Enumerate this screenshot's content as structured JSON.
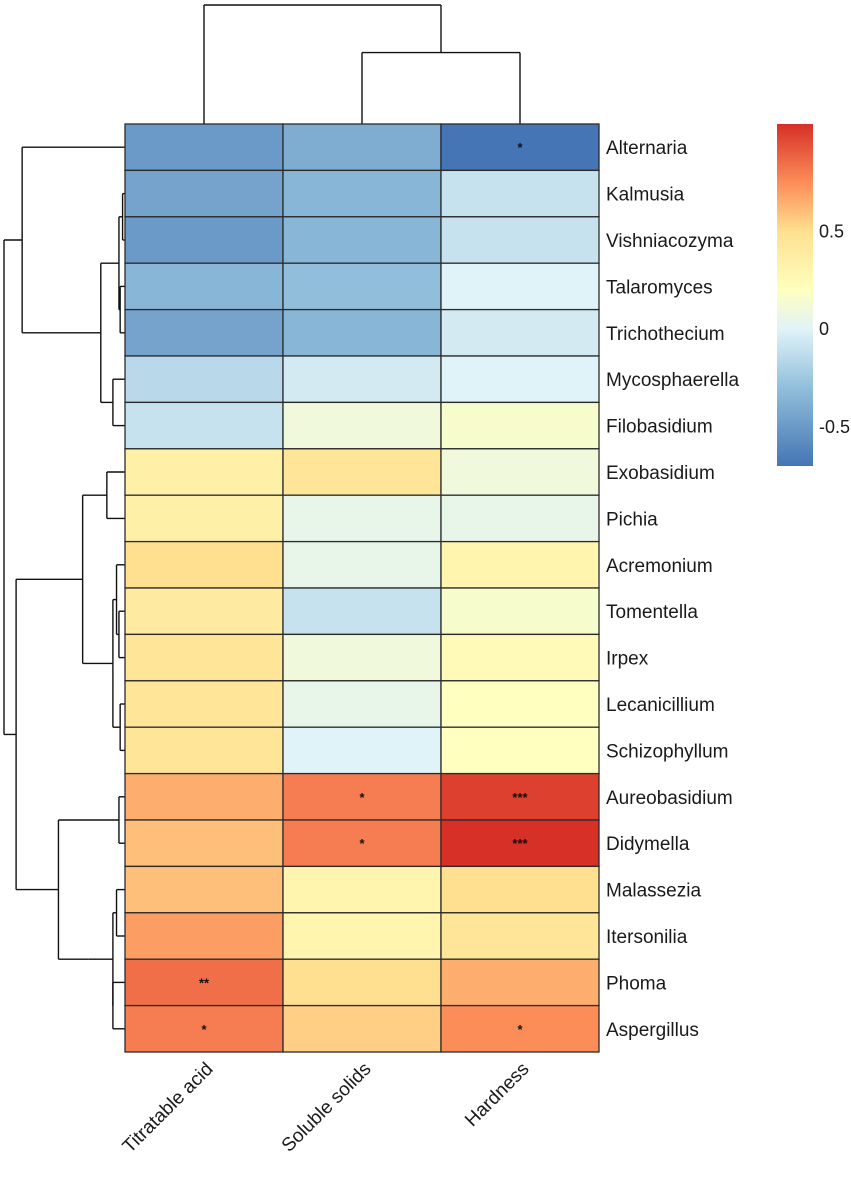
{
  "chart_data": {
    "type": "heatmap",
    "columns": [
      "Titratable acid",
      "Soluble solids",
      "Hardness"
    ],
    "rows": [
      "Alternaria",
      "Kalmusia",
      "Vishniacozyma",
      "Talaromyces",
      "Trichothecium",
      "Mycosphaerella",
      "Filobasidium",
      "Exobasidium",
      "Pichia",
      "Acremonium",
      "Tomentella",
      "Irpex",
      "Lecanicillium",
      "Schizophyllum",
      "Aureobasidium",
      "Didymella",
      "Malassezia",
      "Itersonilia",
      "Phoma",
      "Aspergillus"
    ],
    "values": [
      [
        -0.5,
        -0.4,
        -0.7
      ],
      [
        -0.45,
        -0.35,
        -0.1
      ],
      [
        -0.5,
        -0.35,
        -0.1
      ],
      [
        -0.35,
        -0.3,
        0.0
      ],
      [
        -0.45,
        -0.35,
        -0.05
      ],
      [
        -0.15,
        -0.05,
        0.0
      ],
      [
        -0.1,
        0.1,
        0.15
      ],
      [
        0.35,
        0.45,
        0.1
      ],
      [
        0.35,
        0.05,
        0.05
      ],
      [
        0.5,
        0.05,
        0.3
      ],
      [
        0.4,
        -0.1,
        0.15
      ],
      [
        0.45,
        0.1,
        0.25
      ],
      [
        0.45,
        0.05,
        0.2
      ],
      [
        0.45,
        0.0,
        0.2
      ],
      [
        0.65,
        0.8,
        1.0
      ],
      [
        0.6,
        0.8,
        1.05
      ],
      [
        0.6,
        0.3,
        0.5
      ],
      [
        0.7,
        0.3,
        0.45
      ],
      [
        0.85,
        0.5,
        0.65
      ],
      [
        0.8,
        0.55,
        0.75
      ]
    ],
    "significance": [
      [
        "",
        "",
        "*"
      ],
      [
        "",
        "",
        ""
      ],
      [
        "",
        "",
        ""
      ],
      [
        "",
        "",
        ""
      ],
      [
        "",
        "",
        ""
      ],
      [
        "",
        "",
        ""
      ],
      [
        "",
        "",
        ""
      ],
      [
        "",
        "",
        ""
      ],
      [
        "",
        "",
        ""
      ],
      [
        "",
        "",
        ""
      ],
      [
        "",
        "",
        ""
      ],
      [
        "",
        "",
        ""
      ],
      [
        "",
        "",
        ""
      ],
      [
        "",
        "",
        ""
      ],
      [
        "",
        "*",
        "***"
      ],
      [
        "",
        "*",
        "***"
      ],
      [
        "",
        "",
        ""
      ],
      [
        "",
        "",
        ""
      ],
      [
        "**",
        "",
        ""
      ],
      [
        "*",
        "",
        "*"
      ]
    ],
    "color_scale": {
      "min": -0.7,
      "max": 1.05,
      "stops": [
        {
          "value": -0.7,
          "color": "#4575b4"
        },
        {
          "value": -0.3,
          "color": "#91bfdb"
        },
        {
          "value": 0.0,
          "color": "#e0f3f8"
        },
        {
          "value": 0.2,
          "color": "#ffffbf"
        },
        {
          "value": 0.5,
          "color": "#fee090"
        },
        {
          "value": 0.75,
          "color": "#fc8d59"
        },
        {
          "value": 1.05,
          "color": "#d73027"
        }
      ],
      "ticks": [
        {
          "value": 0.5,
          "label": "0.5"
        },
        {
          "value": 0.0,
          "label": "0"
        },
        {
          "value": -0.5,
          "label": "-0.5"
        }
      ]
    },
    "row_dendrogram": {
      "height": 1.0,
      "children": [
        {
          "height": 0.85,
          "children": [
            {
              "leaf": 0
            },
            {
              "height": 0.2,
              "children": [
                {
                  "height": 0.05,
                  "children": [
                    {
                      "height": 0.02,
                      "children": [
                        {
                          "leaf": 1
                        },
                        {
                          "leaf": 2
                        }
                      ]
                    },
                    {
                      "height": 0.04,
                      "children": [
                        {
                          "leaf": 3
                        },
                        {
                          "leaf": 4
                        }
                      ]
                    }
                  ]
                },
                {
                  "height": 0.1,
                  "children": [
                    {
                      "leaf": 5
                    },
                    {
                      "leaf": 6
                    }
                  ]
                }
              ]
            }
          ]
        },
        {
          "height": 0.9,
          "children": [
            {
              "height": 0.5,
              "children": [
                {
                  "height": 0.35,
                  "children": [
                    {
                      "height": 0.15,
                      "children": [
                        {
                          "leaf": 7
                        },
                        {
                          "leaf": 8
                        }
                      ]
                    },
                    {
                      "height": 0.1,
                      "children": [
                        {
                          "height": 0.07,
                          "children": [
                            {
                              "leaf": 9
                            },
                            {
                              "height": 0.05,
                              "children": [
                                {
                                  "leaf": 10
                                },
                                {
                                  "leaf": 11
                                }
                              ]
                            }
                          ]
                        },
                        {
                          "height": 0.04,
                          "children": [
                            {
                              "leaf": 12
                            },
                            {
                              "leaf": 13
                            }
                          ]
                        }
                      ]
                    }
                  ]
                }
              ]
            },
            {
              "height": 0.55,
              "children": [
                {
                  "height": 0.05,
                  "children": [
                    {
                      "leaf": 14
                    },
                    {
                      "leaf": 15
                    }
                  ]
                },
                {
                  "height": 0.3,
                  "children": [
                    {
                      "height": 0.1,
                      "children": [
                        {
                          "height": 0.07,
                          "children": [
                            {
                              "leaf": 16
                            },
                            {
                              "leaf": 17
                            }
                          ]
                        },
                        {
                          "height": 0.1,
                          "children": [
                            {
                              "leaf": 18
                            },
                            {
                              "leaf": 19
                            }
                          ]
                        }
                      ]
                    }
                  ]
                }
              ]
            }
          ]
        }
      ]
    },
    "column_dendrogram": {
      "height": 1.0,
      "children": [
        {
          "leaf": 0
        },
        {
          "height": 0.6,
          "children": [
            {
              "leaf": 1
            },
            {
              "leaf": 2
            }
          ]
        }
      ]
    }
  }
}
